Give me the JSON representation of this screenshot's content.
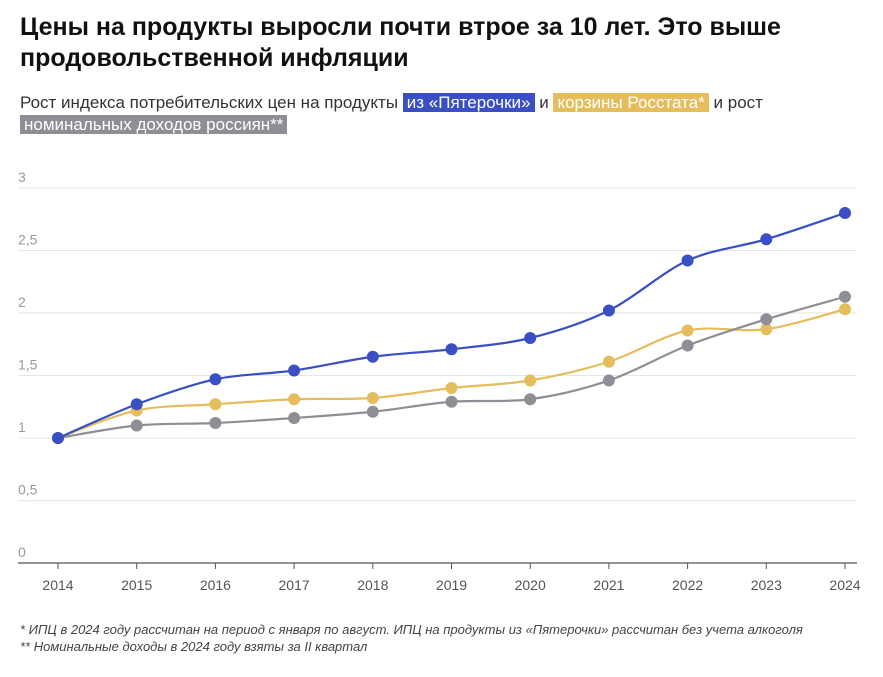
{
  "header": {
    "title": "Цены на продукты выросли почти втрое за 10 лет. Это выше продовольственной инфляции",
    "subtitle_prefix": "Рост индекса потребительских цен на продукты ",
    "subtitle_blue": "из «Пятерочки»",
    "subtitle_mid": " и ",
    "subtitle_yellow": "корзины Росстата*",
    "subtitle_suffix": " и рост ",
    "subtitle_gray": "номинальных доходов россиян**"
  },
  "colors": {
    "blue": "#3a4fc4",
    "yellow": "#e5bd5d",
    "gray": "#8e8e96",
    "grid": "#e6e6e6",
    "axis": "#555555"
  },
  "chart_data": {
    "type": "line",
    "x": [
      "2014",
      "2015",
      "2016",
      "2017",
      "2018",
      "2019",
      "2020",
      "2021",
      "2022",
      "2023",
      "2024"
    ],
    "y_ticks": [
      "0",
      "0,5",
      "1",
      "1,5",
      "2",
      "2,5",
      "3"
    ],
    "ylim": [
      0,
      3
    ],
    "series": [
      {
        "name": "из «Пятерочки»",
        "color": "#3a4fc4",
        "values": [
          1.0,
          1.27,
          1.47,
          1.54,
          1.65,
          1.71,
          1.8,
          2.02,
          2.42,
          2.59,
          2.8
        ]
      },
      {
        "name": "корзины Росстата*",
        "color": "#e5bd5d",
        "values": [
          1.0,
          1.22,
          1.27,
          1.31,
          1.32,
          1.4,
          1.46,
          1.61,
          1.86,
          1.87,
          2.03
        ]
      },
      {
        "name": "номинальных доходов россиян**",
        "color": "#8e8e96",
        "values": [
          1.0,
          1.1,
          1.12,
          1.16,
          1.21,
          1.29,
          1.31,
          1.46,
          1.74,
          1.95,
          2.13
        ]
      }
    ]
  },
  "footnotes": {
    "note1": "* ИПЦ в 2024 году рассчитан на период с января по август. ИПЦ на продукты из «Пятерочки» рассчитан без учета алкоголя",
    "note2": "** Номинальные доходы в 2024 году взяты за II квартал"
  }
}
